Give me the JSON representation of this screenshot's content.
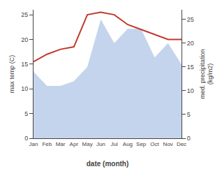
{
  "chart_data": {
    "type": "line",
    "categories": [
      "Jan",
      "Feb",
      "Mar",
      "Apr",
      "May",
      "Jun",
      "Jul",
      "Aug",
      "Sep",
      "Oct",
      "Nov",
      "Dec"
    ],
    "series": [
      {
        "type": "area",
        "axis": "y2",
        "color": "#c5d4ed",
        "values": [
          14.0,
          11.0,
          11.0,
          12.0,
          15.0,
          25.0,
          20.0,
          23.0,
          23.0,
          17.0,
          20.0,
          15.5
        ]
      },
      {
        "type": "line",
        "axis": "y",
        "color": "#c0392b",
        "values": [
          15.5,
          17.0,
          18.0,
          18.5,
          25.0,
          25.5,
          25.0,
          23.0,
          22.0,
          21.0,
          20.0,
          20.0
        ]
      }
    ],
    "xlabel": "date (month)",
    "ylabel": "max temp (C)",
    "y2label": "med. precipitation\n(kg/m2)",
    "ylim": [
      0,
      26
    ],
    "yticks": [
      0,
      5,
      10,
      15,
      20,
      25
    ],
    "y2lim": [
      0,
      27
    ],
    "y2ticks": [
      0,
      5,
      10,
      15,
      20,
      25
    ],
    "grid": false
  }
}
